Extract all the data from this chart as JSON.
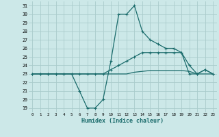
{
  "xlabel": "Humidex (Indice chaleur)",
  "bg_color": "#cce8e8",
  "grid_color": "#aacccc",
  "line_color": "#1a6b6b",
  "xlim": [
    -0.5,
    23.5
  ],
  "ylim": [
    18.5,
    31.5
  ],
  "xticks": [
    0,
    1,
    2,
    3,
    4,
    5,
    6,
    7,
    8,
    9,
    10,
    11,
    12,
    13,
    14,
    15,
    16,
    17,
    18,
    19,
    20,
    21,
    22,
    23
  ],
  "yticks": [
    19,
    20,
    21,
    22,
    23,
    24,
    25,
    26,
    27,
    28,
    29,
    30,
    31
  ],
  "hours": [
    0,
    1,
    2,
    3,
    4,
    5,
    6,
    7,
    8,
    9,
    10,
    11,
    12,
    13,
    14,
    15,
    16,
    17,
    18,
    19,
    20,
    21,
    22,
    23
  ],
  "line1": [
    23,
    23,
    23,
    23,
    23,
    23,
    21,
    19,
    19,
    20,
    24.5,
    30,
    30,
    31,
    28,
    27,
    26.5,
    26,
    26,
    25.5,
    23,
    23,
    23.5,
    23
  ],
  "line2": [
    23,
    23,
    23,
    23,
    23,
    23,
    23,
    23,
    23,
    23,
    23.5,
    24,
    24.5,
    25,
    25.5,
    25.5,
    25.5,
    25.5,
    25.5,
    25.5,
    24,
    23,
    23.5,
    23
  ],
  "line3": [
    23,
    23,
    23,
    23,
    23,
    23,
    23,
    23,
    23,
    23,
    23,
    23,
    23,
    23.2,
    23.3,
    23.4,
    23.4,
    23.4,
    23.4,
    23.4,
    23.3,
    23,
    23,
    23
  ]
}
